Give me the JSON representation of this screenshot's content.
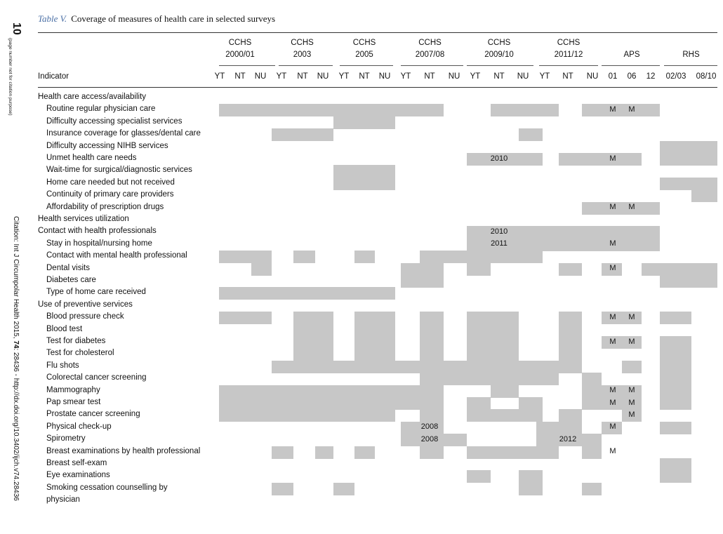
{
  "page_number": "10",
  "page_note": "(page number not for citation purpose)",
  "citation": {
    "pre": "Citation: Int J Circumpolar Health 2015, ",
    "volume": "74",
    "post": ": 28436 - http://dx.doi.org/10.3402/ijch.v74.28436"
  },
  "caption": {
    "label": "Table V.",
    "text": "Coverage of measures of health care in selected surveys"
  },
  "table": {
    "indicator_header": "Indicator",
    "groups": [
      {
        "line1": "CCHS",
        "line2": "2000/01"
      },
      {
        "line1": "CCHS",
        "line2": "2003"
      },
      {
        "line1": "CCHS",
        "line2": "2005"
      },
      {
        "line1": "CCHS",
        "line2": "2007/08"
      },
      {
        "line1": "CCHS",
        "line2": "2009/10"
      },
      {
        "line1": "CCHS",
        "line2": "2011/12"
      },
      {
        "line1": "APS",
        "line2": ""
      },
      {
        "line1": "RHS",
        "line2": ""
      }
    ],
    "columns": [
      "YT",
      "NT",
      "NU",
      "YT",
      "NT",
      "NU",
      "YT",
      "NT",
      "NU",
      "YT",
      "NT",
      "NU",
      "YT",
      "NT",
      "NU",
      "YT",
      "NT",
      "NU",
      "01",
      "06",
      "12",
      "02/03",
      "08/10"
    ],
    "rows": [
      {
        "label": "Health care access/availability",
        "indent": false
      },
      {
        "label": "Routine regular physician care",
        "indent": true
      },
      {
        "label": "Difficulty accessing specialist services",
        "indent": true
      },
      {
        "label": "Insurance coverage for glasses/dental care",
        "indent": true
      },
      {
        "label": "Difficulty accessing NIHB services",
        "indent": true
      },
      {
        "label": "Unmet health care needs",
        "indent": true
      },
      {
        "label": "Wait-time for surgical/diagnostic services",
        "indent": true
      },
      {
        "label": "Home care needed but not received",
        "indent": true
      },
      {
        "label": "Continuity of primary care providers",
        "indent": true
      },
      {
        "label": "Affordability of prescription drugs",
        "indent": true
      },
      {
        "label": "Health services utilization",
        "indent": false
      },
      {
        "label": "Contact with health professionals",
        "indent": false
      },
      {
        "label": "Stay in hospital/nursing home",
        "indent": true
      },
      {
        "label": "Contact with mental health professional",
        "indent": true
      },
      {
        "label": "Dental visits",
        "indent": true
      },
      {
        "label": "Diabetes care",
        "indent": true
      },
      {
        "label": "Type of home care received",
        "indent": true
      },
      {
        "label": "Use of preventive services",
        "indent": false
      },
      {
        "label": "Blood pressure check",
        "indent": true
      },
      {
        "label": "Blood test",
        "indent": true
      },
      {
        "label": "Test for diabetes",
        "indent": true
      },
      {
        "label": "Test for cholesterol",
        "indent": true
      },
      {
        "label": "Flu shots",
        "indent": true
      },
      {
        "label": "Colorectal cancer screening",
        "indent": true
      },
      {
        "label": "Mammography",
        "indent": true
      },
      {
        "label": "Pap smear test",
        "indent": true
      },
      {
        "label": "Prostate cancer screening",
        "indent": true
      },
      {
        "label": "Physical check-up",
        "indent": true
      },
      {
        "label": "Spirometry",
        "indent": true
      },
      {
        "label": "Breast examinations by health professional",
        "indent": true
      },
      {
        "label": "Breast self-exam",
        "indent": true
      },
      {
        "label": "Eye examinations",
        "indent": true
      },
      {
        "label": "Smoking cessation counselling by",
        "indent": true
      },
      {
        "label": "physician",
        "indent": true
      }
    ],
    "shaded": [
      [
        1,
        0,
        10
      ],
      [
        1,
        13,
        14
      ],
      [
        1,
        15,
        15
      ],
      [
        1,
        17,
        20
      ],
      [
        2,
        6,
        8
      ],
      [
        3,
        3,
        5
      ],
      [
        3,
        14,
        14
      ],
      [
        4,
        21,
        22
      ],
      [
        5,
        12,
        14
      ],
      [
        5,
        16,
        19
      ],
      [
        5,
        21,
        22
      ],
      [
        6,
        6,
        8
      ],
      [
        7,
        6,
        8
      ],
      [
        7,
        21,
        22
      ],
      [
        8,
        22,
        22
      ],
      [
        9,
        17,
        20
      ],
      [
        11,
        12,
        20
      ],
      [
        12,
        12,
        20
      ],
      [
        13,
        0,
        2
      ],
      [
        13,
        4,
        4
      ],
      [
        13,
        7,
        7
      ],
      [
        13,
        10,
        14
      ],
      [
        14,
        2,
        2
      ],
      [
        14,
        9,
        10
      ],
      [
        14,
        12,
        12
      ],
      [
        14,
        16,
        16
      ],
      [
        14,
        18,
        18
      ],
      [
        14,
        20,
        22
      ],
      [
        15,
        9,
        10
      ],
      [
        15,
        21,
        22
      ],
      [
        16,
        0,
        8
      ],
      [
        18,
        0,
        2
      ],
      [
        18,
        4,
        5
      ],
      [
        18,
        7,
        8
      ],
      [
        18,
        10,
        10
      ],
      [
        18,
        12,
        13
      ],
      [
        18,
        16,
        16
      ],
      [
        18,
        18,
        19
      ],
      [
        18,
        21,
        21
      ],
      [
        19,
        4,
        5
      ],
      [
        19,
        7,
        8
      ],
      [
        19,
        10,
        10
      ],
      [
        19,
        12,
        13
      ],
      [
        19,
        16,
        16
      ],
      [
        20,
        4,
        5
      ],
      [
        20,
        7,
        8
      ],
      [
        20,
        10,
        10
      ],
      [
        20,
        12,
        13
      ],
      [
        20,
        16,
        16
      ],
      [
        20,
        18,
        19
      ],
      [
        20,
        21,
        21
      ],
      [
        21,
        4,
        5
      ],
      [
        21,
        7,
        8
      ],
      [
        21,
        10,
        10
      ],
      [
        21,
        12,
        13
      ],
      [
        21,
        16,
        16
      ],
      [
        21,
        21,
        21
      ],
      [
        22,
        3,
        16
      ],
      [
        22,
        19,
        19
      ],
      [
        22,
        21,
        21
      ],
      [
        23,
        10,
        15
      ],
      [
        23,
        17,
        17
      ],
      [
        23,
        21,
        21
      ],
      [
        24,
        0,
        10
      ],
      [
        24,
        13,
        13
      ],
      [
        24,
        17,
        19
      ],
      [
        24,
        21,
        21
      ],
      [
        25,
        0,
        10
      ],
      [
        25,
        12,
        12
      ],
      [
        25,
        14,
        14
      ],
      [
        25,
        17,
        19
      ],
      [
        25,
        21,
        21
      ],
      [
        26,
        0,
        3
      ],
      [
        26,
        4,
        4
      ],
      [
        26,
        5,
        6
      ],
      [
        26,
        7,
        7
      ],
      [
        26,
        8,
        8
      ],
      [
        26,
        10,
        10
      ],
      [
        26,
        12,
        14
      ],
      [
        26,
        16,
        16
      ],
      [
        26,
        19,
        19
      ],
      [
        27,
        9,
        10
      ],
      [
        27,
        15,
        16
      ],
      [
        27,
        18,
        18
      ],
      [
        27,
        21,
        21
      ],
      [
        28,
        9,
        11
      ],
      [
        28,
        15,
        17
      ],
      [
        29,
        3,
        3
      ],
      [
        29,
        5,
        5
      ],
      [
        29,
        7,
        7
      ],
      [
        29,
        10,
        10
      ],
      [
        29,
        12,
        15
      ],
      [
        29,
        17,
        17
      ],
      [
        30,
        21,
        21
      ],
      [
        31,
        12,
        12
      ],
      [
        31,
        14,
        14
      ],
      [
        31,
        21,
        21
      ],
      [
        32,
        3,
        3
      ],
      [
        32,
        6,
        6
      ],
      [
        32,
        14,
        14
      ],
      [
        32,
        17,
        17
      ]
    ],
    "marks": [
      {
        "row": 1,
        "col": 18,
        "text": "M"
      },
      {
        "row": 1,
        "col": 19,
        "text": "M"
      },
      {
        "row": 5,
        "col": 13,
        "text": "2010"
      },
      {
        "row": 5,
        "col": 18,
        "text": "M"
      },
      {
        "row": 9,
        "col": 18,
        "text": "M"
      },
      {
        "row": 9,
        "col": 19,
        "text": "M"
      },
      {
        "row": 11,
        "col": 13,
        "text": "2010"
      },
      {
        "row": 12,
        "col": 13,
        "text": "2011"
      },
      {
        "row": 12,
        "col": 18,
        "text": "M"
      },
      {
        "row": 14,
        "col": 18,
        "text": "M"
      },
      {
        "row": 18,
        "col": 18,
        "text": "M"
      },
      {
        "row": 18,
        "col": 19,
        "text": "M"
      },
      {
        "row": 20,
        "col": 18,
        "text": "M"
      },
      {
        "row": 20,
        "col": 19,
        "text": "M"
      },
      {
        "row": 24,
        "col": 18,
        "text": "M"
      },
      {
        "row": 24,
        "col": 19,
        "text": "M"
      },
      {
        "row": 25,
        "col": 18,
        "text": "M"
      },
      {
        "row": 25,
        "col": 19,
        "text": "M"
      },
      {
        "row": 26,
        "col": 19,
        "text": "M"
      },
      {
        "row": 27,
        "col": 10,
        "text": "2008"
      },
      {
        "row": 27,
        "col": 18,
        "text": "M"
      },
      {
        "row": 28,
        "col": 10,
        "text": "2008"
      },
      {
        "row": 28,
        "col": 16,
        "text": "2012"
      },
      {
        "row": 29,
        "col": 18,
        "text": "M"
      }
    ]
  }
}
